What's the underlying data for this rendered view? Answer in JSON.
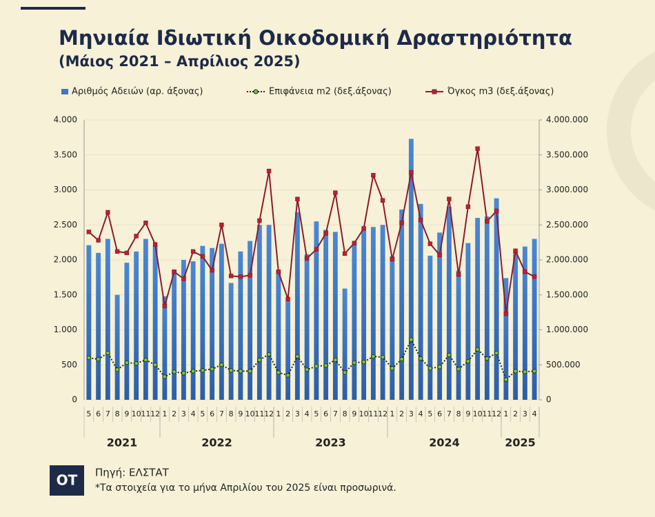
{
  "chart_data": {
    "type": "bar-line",
    "title": "Μηνιαία Ιδιωτική Οικοδομική Δραστηριότητα",
    "subtitle": "(Μάιος 2021 – Απρίλιος 2025)",
    "categories": [
      "5",
      "6",
      "7",
      "8",
      "9",
      "10",
      "11",
      "12",
      "1",
      "2",
      "3",
      "4",
      "5",
      "6",
      "7",
      "8",
      "9",
      "10",
      "11",
      "12",
      "1",
      "2",
      "3",
      "4",
      "5",
      "6",
      "7",
      "8",
      "9",
      "10",
      "11",
      "12",
      "1",
      "2",
      "3",
      "4",
      "5",
      "6",
      "7",
      "8",
      "9",
      "10",
      "11",
      "12",
      "1",
      "2",
      "3",
      "4"
    ],
    "year_groups": [
      "2021",
      "2022",
      "2023",
      "2024",
      "2025"
    ],
    "series": [
      {
        "name": "Αριθμός Αδειών (αρ. άξονας)",
        "kind": "bar",
        "color": "#3d78c4",
        "values": [
          2210,
          2100,
          2300,
          1500,
          1960,
          2120,
          2300,
          2200,
          1480,
          1860,
          2000,
          1980,
          2200,
          2170,
          2230,
          1670,
          2120,
          2270,
          2500,
          2500,
          1850,
          1420,
          2680,
          2080,
          2550,
          2430,
          2400,
          1590,
          2250,
          2440,
          2470,
          2500,
          2050,
          2720,
          3730,
          2800,
          2060,
          2390,
          2760,
          1850,
          2240,
          2600,
          2620,
          2880,
          1740,
          2130,
          2190,
          2300
        ]
      },
      {
        "name": "Επιφάνεια m2 (δεξ.άξονας)",
        "kind": "line",
        "axis": "y2",
        "color": "#1a2a1a",
        "marker_color": "#7cc242",
        "marker": "circle",
        "style": "dotted",
        "values": [
          600000,
          580000,
          670000,
          430000,
          530000,
          520000,
          570000,
          500000,
          330000,
          400000,
          380000,
          410000,
          420000,
          440000,
          500000,
          420000,
          410000,
          410000,
          570000,
          650000,
          390000,
          350000,
          620000,
          430000,
          480000,
          490000,
          570000,
          390000,
          530000,
          540000,
          620000,
          610000,
          450000,
          580000,
          860000,
          590000,
          450000,
          470000,
          640000,
          440000,
          550000,
          720000,
          590000,
          670000,
          290000,
          410000,
          400000,
          410000
        ]
      },
      {
        "name": "Όγκος m3 (δεξ.άξονας)",
        "kind": "line",
        "axis": "y2",
        "color": "#8b1a2c",
        "marker_color": "#c0202a",
        "marker": "square",
        "style": "solid",
        "values": [
          2400000,
          2280000,
          2680000,
          2120000,
          2100000,
          2340000,
          2530000,
          2220000,
          1340000,
          1830000,
          1730000,
          2120000,
          2050000,
          1850000,
          2500000,
          1770000,
          1760000,
          1780000,
          2560000,
          3270000,
          1830000,
          1440000,
          2870000,
          2020000,
          2150000,
          2380000,
          2960000,
          2090000,
          2240000,
          2450000,
          3210000,
          2850000,
          2010000,
          2530000,
          3250000,
          2570000,
          2230000,
          2070000,
          2870000,
          1790000,
          2760000,
          3590000,
          2550000,
          2700000,
          1230000,
          2130000,
          1830000,
          1760000
        ]
      }
    ],
    "ylim": [
      0,
      4000
    ],
    "yticks": [
      0,
      500,
      {
        "value": 1000,
        "label": "1.000"
      },
      {
        "value": 1500,
        "label": "1.500"
      },
      {
        "value": 2000,
        "label": "2.000"
      },
      {
        "value": 2500,
        "label": "2.500"
      },
      {
        "value": 3000,
        "label": "3.000"
      },
      {
        "value": 3500,
        "label": "3.500"
      },
      {
        "value": 4000,
        "label": "4.000"
      }
    ],
    "y2lim": [
      0,
      4000000
    ],
    "y2ticks": [
      0,
      {
        "value": 500000,
        "label": "500.000"
      },
      {
        "value": 1000000,
        "label": "1.000.000"
      },
      {
        "value": 1500000,
        "label": "1.500.000"
      },
      {
        "value": 2000000,
        "label": "2.000.000"
      },
      {
        "value": 2500000,
        "label": "2.500.000"
      },
      {
        "value": 3000000,
        "label": "3.000.000"
      },
      {
        "value": 3500000,
        "label": "3.500.000"
      },
      {
        "value": 4000000,
        "label": "4.000.000"
      }
    ],
    "legend": "top",
    "source": "Πηγή: ΕΛΣΤΑΤ",
    "note": "*Τα στοιχεία για το μήνα Απριλίου του 2025 είναι προσωρινά.",
    "logo": "OT"
  }
}
